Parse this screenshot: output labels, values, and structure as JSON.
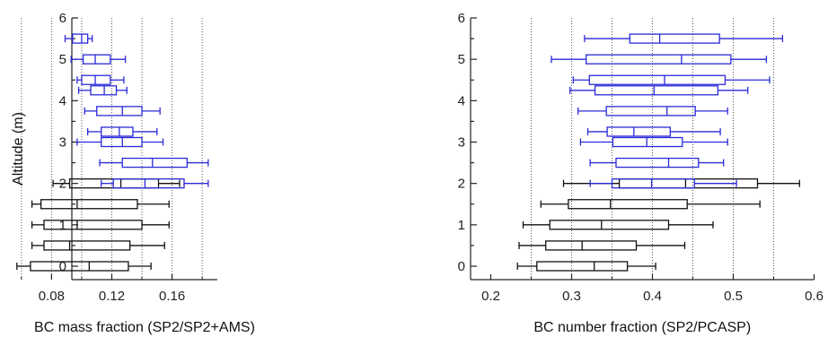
{
  "chart_data": [
    {
      "type": "box",
      "orientation": "horizontal",
      "xlabel": "BC mass fraction (SP2/SP2+AMS)",
      "ylabel": "Altitude (m)",
      "xlim": [
        0.05,
        0.19
      ],
      "ylim": [
        -0.25,
        6
      ],
      "xticks": [
        0.08,
        0.12,
        0.16
      ],
      "xtick_labels": [
        "0.08",
        "0.12",
        "0.16"
      ],
      "yticks": [
        0,
        1,
        2,
        3,
        4,
        5,
        6
      ],
      "ytick_labels": [
        "0",
        "1",
        "2",
        "3",
        "4",
        "5",
        "6"
      ],
      "grid_x": [
        0.06,
        0.08,
        0.1,
        0.12,
        0.14,
        0.16,
        0.18
      ],
      "grid": "vertical dotted",
      "colors": {
        "upper": "#2a2ad8",
        "lower": "#111111"
      },
      "boxes": [
        {
          "altitude": 0.0,
          "min": 0.057,
          "q1": 0.066,
          "median": 0.105,
          "q3": 0.131,
          "max": 0.146,
          "color": "lower"
        },
        {
          "altitude": 0.5,
          "min": 0.067,
          "q1": 0.075,
          "median": 0.092,
          "q3": 0.132,
          "max": 0.155,
          "color": "lower"
        },
        {
          "altitude": 1.0,
          "min": 0.067,
          "q1": 0.075,
          "median": 0.097,
          "q3": 0.14,
          "max": 0.158,
          "color": "lower"
        },
        {
          "altitude": 1.5,
          "min": 0.067,
          "q1": 0.073,
          "median": 0.097,
          "q3": 0.137,
          "max": 0.158,
          "color": "lower"
        },
        {
          "altitude": 2.0,
          "min": 0.081,
          "q1": 0.092,
          "median": 0.126,
          "q3": 0.151,
          "max": 0.165,
          "color": "lower"
        },
        {
          "altitude": 2.0,
          "min": 0.113,
          "q1": 0.121,
          "median": 0.142,
          "q3": 0.168,
          "max": 0.184,
          "color": "upper"
        },
        {
          "altitude": 2.5,
          "min": 0.112,
          "q1": 0.127,
          "median": 0.147,
          "q3": 0.17,
          "max": 0.184,
          "color": "upper"
        },
        {
          "altitude": 3.0,
          "min": 0.097,
          "q1": 0.113,
          "median": 0.127,
          "q3": 0.14,
          "max": 0.154,
          "color": "upper"
        },
        {
          "altitude": 3.25,
          "min": 0.104,
          "q1": 0.113,
          "median": 0.125,
          "q3": 0.134,
          "max": 0.15,
          "color": "upper"
        },
        {
          "altitude": 3.75,
          "min": 0.102,
          "q1": 0.11,
          "median": 0.127,
          "q3": 0.14,
          "max": 0.152,
          "color": "upper"
        },
        {
          "altitude": 4.25,
          "min": 0.098,
          "q1": 0.106,
          "median": 0.115,
          "q3": 0.123,
          "max": 0.13,
          "color": "upper"
        },
        {
          "altitude": 4.5,
          "min": 0.097,
          "q1": 0.1,
          "median": 0.109,
          "q3": 0.119,
          "max": 0.128,
          "color": "upper"
        },
        {
          "altitude": 5.0,
          "min": 0.093,
          "q1": 0.101,
          "median": 0.109,
          "q3": 0.119,
          "max": 0.129,
          "color": "upper"
        },
        {
          "altitude": 5.5,
          "min": 0.089,
          "q1": 0.094,
          "median": 0.1,
          "q3": 0.104,
          "max": 0.107,
          "color": "upper"
        }
      ]
    },
    {
      "type": "box",
      "orientation": "horizontal",
      "xlabel": "BC number fraction (SP2/PCASP)",
      "ylabel": "",
      "xlim": [
        0.185,
        0.6
      ],
      "ylim": [
        -0.25,
        6
      ],
      "xticks": [
        0.2,
        0.3,
        0.4,
        0.5,
        0.6
      ],
      "xtick_labels": [
        "0.2",
        "0.3",
        "0.4",
        "0.5",
        "0.6"
      ],
      "yticks": [
        0,
        1,
        2,
        3,
        4,
        5,
        6
      ],
      "ytick_labels": [
        "0",
        "1",
        "2",
        "3",
        "4",
        "5",
        "6"
      ],
      "grid_x": [
        0.25,
        0.3,
        0.35,
        0.4,
        0.45,
        0.5,
        0.55
      ],
      "grid": "vertical dotted",
      "colors": {
        "upper": "#2a2ad8",
        "lower": "#111111"
      },
      "boxes": [
        {
          "altitude": 0.0,
          "min": 0.233,
          "q1": 0.257,
          "median": 0.328,
          "q3": 0.369,
          "max": 0.404,
          "color": "lower"
        },
        {
          "altitude": 0.5,
          "min": 0.235,
          "q1": 0.268,
          "median": 0.313,
          "q3": 0.38,
          "max": 0.44,
          "color": "lower"
        },
        {
          "altitude": 1.0,
          "min": 0.24,
          "q1": 0.273,
          "median": 0.337,
          "q3": 0.42,
          "max": 0.475,
          "color": "lower"
        },
        {
          "altitude": 1.5,
          "min": 0.262,
          "q1": 0.296,
          "median": 0.348,
          "q3": 0.443,
          "max": 0.533,
          "color": "lower"
        },
        {
          "altitude": 2.0,
          "min": 0.29,
          "q1": 0.359,
          "median": 0.441,
          "q3": 0.53,
          "max": 0.582,
          "color": "lower"
        },
        {
          "altitude": 2.0,
          "min": 0.323,
          "q1": 0.35,
          "median": 0.399,
          "q3": 0.452,
          "max": 0.504,
          "color": "upper"
        },
        {
          "altitude": 2.5,
          "min": 0.323,
          "q1": 0.355,
          "median": 0.42,
          "q3": 0.457,
          "max": 0.488,
          "color": "upper"
        },
        {
          "altitude": 3.0,
          "min": 0.311,
          "q1": 0.351,
          "median": 0.393,
          "q3": 0.437,
          "max": 0.493,
          "color": "upper"
        },
        {
          "altitude": 3.25,
          "min": 0.32,
          "q1": 0.344,
          "median": 0.377,
          "q3": 0.422,
          "max": 0.484,
          "color": "upper"
        },
        {
          "altitude": 3.75,
          "min": 0.308,
          "q1": 0.343,
          "median": 0.418,
          "q3": 0.453,
          "max": 0.493,
          "color": "upper"
        },
        {
          "altitude": 4.25,
          "min": 0.298,
          "q1": 0.329,
          "median": 0.402,
          "q3": 0.481,
          "max": 0.518,
          "color": "upper"
        },
        {
          "altitude": 4.5,
          "min": 0.302,
          "q1": 0.322,
          "median": 0.415,
          "q3": 0.49,
          "max": 0.545,
          "color": "upper"
        },
        {
          "altitude": 5.0,
          "min": 0.275,
          "q1": 0.318,
          "median": 0.436,
          "q3": 0.497,
          "max": 0.541,
          "color": "upper"
        },
        {
          "altitude": 5.5,
          "min": 0.316,
          "q1": 0.372,
          "median": 0.409,
          "q3": 0.483,
          "max": 0.561,
          "color": "upper"
        }
      ]
    }
  ]
}
